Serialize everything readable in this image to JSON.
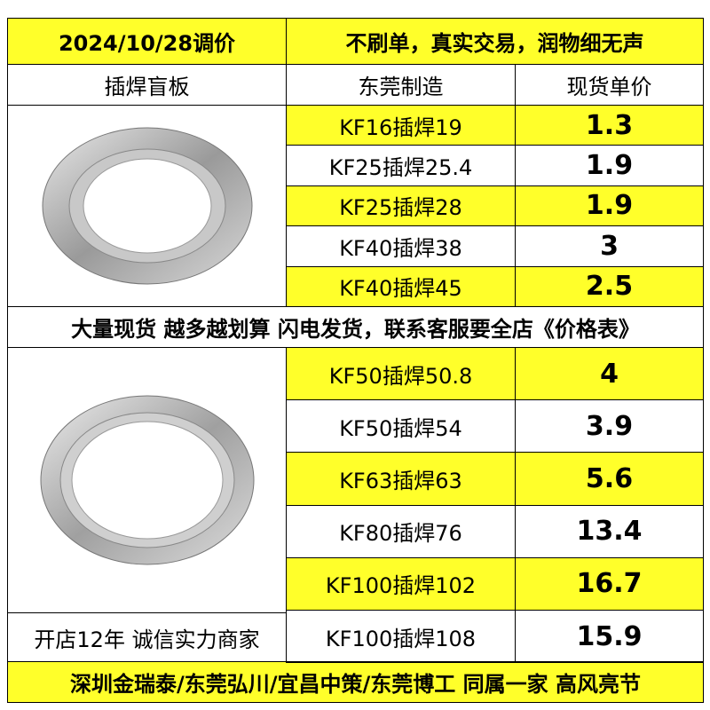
{
  "header": {
    "date": "2024/10/28调价",
    "slogan": "不刷单，真实交易，润物细无声"
  },
  "columns": [
    "插焊盲板",
    "东莞制造",
    "现货单价"
  ],
  "group1": {
    "rows": [
      {
        "model": "KF16插焊19",
        "price": "1.3"
      },
      {
        "model": "KF25插焊25.4",
        "price": "1.9"
      },
      {
        "model": "KF25插焊28",
        "price": "1.9"
      },
      {
        "model": "KF40插焊38",
        "price": "3"
      },
      {
        "model": "KF40插焊45",
        "price": "2.5"
      }
    ]
  },
  "banner": "大量现货 越多越划算 闪电发货，联系客服要全店《价格表》",
  "group2": {
    "rows": [
      {
        "model": "KF50插焊50.8",
        "price": "4"
      },
      {
        "model": "KF50插焊54",
        "price": "3.9"
      },
      {
        "model": "KF63插焊63",
        "price": "5.6"
      },
      {
        "model": "KF80插焊76",
        "price": "13.4"
      },
      {
        "model": "KF100插焊102",
        "price": "16.7"
      },
      {
        "model": "KF100插焊108",
        "price": "15.9"
      }
    ],
    "note": "开店12年 诚信实力商家"
  },
  "footer": "深圳金瑞泰/东莞弘川/宜昌中策/东莞博工 同属一家 高风亮节"
}
